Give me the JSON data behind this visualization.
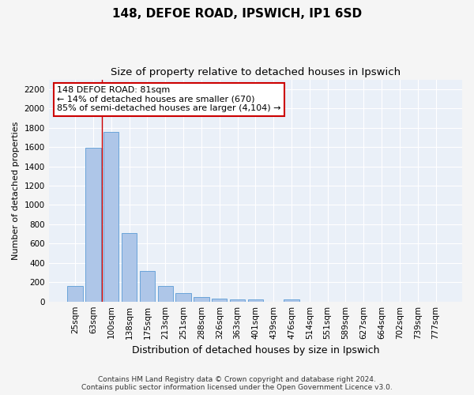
{
  "title1": "148, DEFOE ROAD, IPSWICH, IP1 6SD",
  "title2": "Size of property relative to detached houses in Ipswich",
  "xlabel": "Distribution of detached houses by size in Ipswich",
  "ylabel": "Number of detached properties",
  "categories": [
    "25sqm",
    "63sqm",
    "100sqm",
    "138sqm",
    "175sqm",
    "213sqm",
    "251sqm",
    "288sqm",
    "326sqm",
    "363sqm",
    "401sqm",
    "439sqm",
    "476sqm",
    "514sqm",
    "551sqm",
    "589sqm",
    "627sqm",
    "664sqm",
    "702sqm",
    "739sqm",
    "777sqm"
  ],
  "values": [
    160,
    1590,
    1760,
    710,
    315,
    160,
    90,
    50,
    30,
    20,
    20,
    0,
    20,
    0,
    0,
    0,
    0,
    0,
    0,
    0,
    0
  ],
  "bar_color": "#aec6e8",
  "bar_edge_color": "#5b9bd5",
  "property_line_x": 1.5,
  "annotation_text": "148 DEFOE ROAD: 81sqm\n← 14% of detached houses are smaller (670)\n85% of semi-detached houses are larger (4,104) →",
  "annotation_box_color": "#ffffff",
  "annotation_box_edge_color": "#cc0000",
  "vline_color": "#cc0000",
  "ylim": [
    0,
    2300
  ],
  "yticks": [
    0,
    200,
    400,
    600,
    800,
    1000,
    1200,
    1400,
    1600,
    1800,
    2000,
    2200
  ],
  "footer1": "Contains HM Land Registry data © Crown copyright and database right 2024.",
  "footer2": "Contains public sector information licensed under the Open Government Licence v3.0.",
  "bg_color": "#eaf0f8",
  "grid_color": "#ffffff",
  "fig_bg_color": "#f5f5f5",
  "title1_fontsize": 11,
  "title2_fontsize": 9.5,
  "xlabel_fontsize": 9,
  "ylabel_fontsize": 8,
  "tick_fontsize": 7.5,
  "footer_fontsize": 6.5,
  "ann_fontsize": 8
}
